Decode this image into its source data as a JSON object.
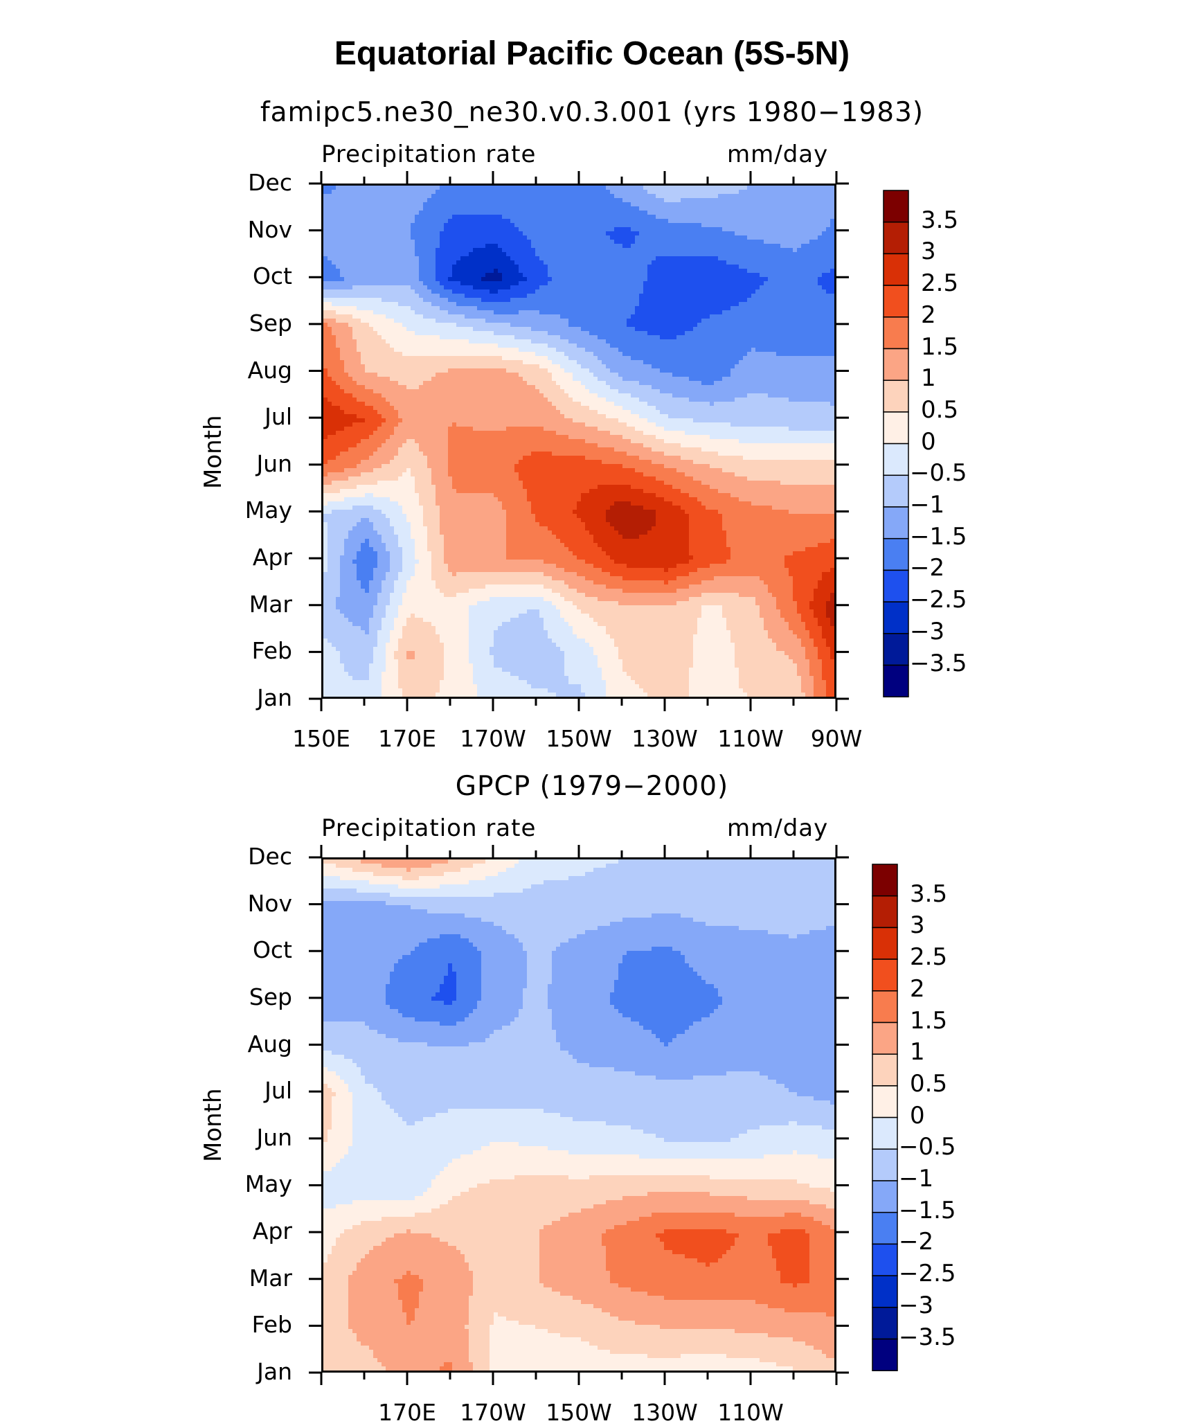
{
  "title": "Equatorial Pacific Ocean (5S-5N)",
  "colors": {
    "scale": [
      "#00007f",
      "#001a99",
      "#0030c8",
      "#1e50ee",
      "#4a7ff2",
      "#85a8f8",
      "#b4cbfb",
      "#dbe9fd",
      "#fff0e6",
      "#fdd3bc",
      "#fba585",
      "#f87c4e",
      "#f14f1e",
      "#d93006",
      "#b41e04",
      "#7c0000"
    ]
  },
  "chart_data": [
    {
      "type": "heatmap",
      "title": "famipc5.ne30_ne30.v0.3.001 (yrs 1980−1983)",
      "subtitle_left": "Precipitation rate",
      "subtitle_right": "mm/day",
      "ylabel": "Month",
      "y_ticks": [
        "Jan",
        "Feb",
        "Mar",
        "Apr",
        "May",
        "Jun",
        "Jul",
        "Aug",
        "Sep",
        "Oct",
        "Nov",
        "Dec"
      ],
      "x_ticks": [
        "150E",
        "170E",
        "170W",
        "150W",
        "130W",
        "110W",
        "90W"
      ],
      "x_range": [
        150,
        270
      ],
      "colorbar_labels": [
        "3.5",
        "3",
        "2.5",
        "2",
        "1.5",
        "1",
        "0.5",
        "0",
        "−0.5",
        "−1",
        "−1.5",
        "−2",
        "−2.5",
        "−3",
        "−3.5"
      ],
      "levels": [
        -3.5,
        -3,
        -2.5,
        -2,
        -1.5,
        -1,
        -0.5,
        0,
        0.5,
        1,
        1.5,
        2,
        2.5,
        3,
        3.5
      ],
      "x": [
        150,
        160,
        170,
        180,
        190,
        200,
        210,
        220,
        230,
        240,
        250,
        260,
        270
      ],
      "values": [
        [
          -0.5,
          -0.3,
          0.6,
          0.4,
          -0.2,
          -0.4,
          -0.6,
          0.3,
          0.6,
          0.4,
          0.5,
          0.6,
          2.4
        ],
        [
          -0.3,
          -0.8,
          1.1,
          0.4,
          -0.6,
          -0.8,
          -0.3,
          0.6,
          0.9,
          0.2,
          0.7,
          1.1,
          2.8
        ],
        [
          -0.9,
          -1.3,
          0.4,
          0.3,
          -0.4,
          -0.5,
          0.6,
          0.9,
          1.0,
          0.4,
          0.8,
          2.0,
          3.5
        ],
        [
          -0.3,
          -2.0,
          -0.3,
          1.3,
          1.5,
          1.5,
          2.0,
          2.7,
          2.9,
          2.2,
          1.8,
          2.1,
          2.4
        ],
        [
          -0.5,
          -0.9,
          0.1,
          1.4,
          1.3,
          2.1,
          2.6,
          3.4,
          2.9,
          2.1,
          1.7,
          1.5,
          1.5
        ],
        [
          2.0,
          1.3,
          0.5,
          1.6,
          1.8,
          2.3,
          2.3,
          2.0,
          1.5,
          1.0,
          0.7,
          0.7,
          0.7
        ],
        [
          2.9,
          2.5,
          1.3,
          1.5,
          1.4,
          1.4,
          0.9,
          0.4,
          -0.4,
          -0.6,
          -0.7,
          -0.8,
          -0.8
        ],
        [
          2.1,
          1.0,
          0.8,
          1.1,
          1.2,
          0.8,
          -0.3,
          -1.2,
          -1.5,
          -1.8,
          -1.2,
          -1.3,
          -1.4
        ],
        [
          1.7,
          0.6,
          -0.1,
          -0.4,
          -0.8,
          -1.2,
          -1.6,
          -2.0,
          -2.2,
          -1.9,
          -1.8,
          -1.9,
          -1.7
        ],
        [
          -1.8,
          -1.2,
          -1.1,
          -2.6,
          -3.2,
          -2.2,
          -1.5,
          -1.8,
          -2.2,
          -2.4,
          -2.1,
          -1.8,
          -2.2
        ],
        [
          -1.2,
          -1.0,
          -1.5,
          -2.2,
          -2.3,
          -1.8,
          -1.9,
          -2.1,
          -1.8,
          -1.6,
          -1.4,
          -1.3,
          -1.6
        ],
        [
          -1.6,
          -1.3,
          -1.2,
          -1.6,
          -1.5,
          -1.7,
          -1.8,
          -1.2,
          -0.6,
          -0.8,
          -1.0,
          -1.2,
          -1.4
        ]
      ]
    },
    {
      "type": "heatmap",
      "title": "GPCP (1979−2000)",
      "subtitle_left": "Precipitation rate",
      "subtitle_right": "mm/day",
      "ylabel": "Month",
      "y_ticks": [
        "Jan",
        "Feb",
        "Mar",
        "Apr",
        "May",
        "Jun",
        "Jul",
        "Aug",
        "Sep",
        "Oct",
        "Nov",
        "Dec"
      ],
      "x_ticks": [
        "170E",
        "170W",
        "150W",
        "130W",
        "110W"
      ],
      "x_range": [
        150,
        270
      ],
      "colorbar_labels": [
        "3.5",
        "3",
        "2.5",
        "2",
        "1.5",
        "1",
        "0.5",
        "0",
        "−0.5",
        "−1",
        "−1.5",
        "−2",
        "−2.5",
        "−3",
        "−3.5"
      ],
      "levels": [
        -3.5,
        -3,
        -2.5,
        -2,
        -1.5,
        -1,
        -0.5,
        0,
        0.5,
        1,
        1.5,
        2,
        2.5,
        3,
        3.5
      ],
      "x": [
        150,
        160,
        170,
        180,
        190,
        200,
        210,
        220,
        230,
        240,
        250,
        260,
        270
      ],
      "values": [
        [
          0.5,
          0.7,
          1.3,
          1.6,
          0.3,
          0.2,
          0.2,
          0.2,
          0.2,
          0.1,
          0.2,
          0.4,
          0.9
        ],
        [
          0.7,
          1.2,
          1.5,
          1.3,
          0.4,
          0.5,
          0.6,
          0.9,
          1.0,
          1.0,
          1.1,
          1.2,
          1.4
        ],
        [
          0.6,
          1.3,
          1.6,
          1.3,
          0.7,
          1.0,
          1.3,
          1.6,
          1.8,
          1.9,
          1.8,
          2.1,
          1.8
        ],
        [
          0.3,
          0.8,
          1.1,
          0.9,
          0.8,
          1.0,
          1.3,
          1.7,
          2.1,
          2.2,
          1.9,
          2.2,
          1.6
        ],
        [
          -0.3,
          -0.3,
          -0.4,
          0.4,
          0.6,
          0.7,
          0.7,
          0.8,
          0.9,
          0.8,
          0.7,
          0.6,
          0.4
        ],
        [
          0.6,
          -0.3,
          -0.4,
          -0.3,
          0.0,
          -0.1,
          -0.3,
          -0.4,
          -0.5,
          -0.6,
          -0.4,
          -0.2,
          -0.3
        ],
        [
          0.8,
          -0.4,
          -0.7,
          -0.6,
          -0.7,
          -0.7,
          -0.8,
          -0.7,
          -0.8,
          -0.8,
          -0.8,
          -1.0,
          -1.2
        ],
        [
          -0.6,
          -0.8,
          -0.9,
          -1.0,
          -0.9,
          -0.9,
          -1.1,
          -1.3,
          -1.5,
          -1.3,
          -1.2,
          -1.3,
          -1.3
        ],
        [
          -1.4,
          -1.2,
          -1.9,
          -2.1,
          -1.2,
          -0.9,
          -1.3,
          -1.6,
          -1.7,
          -1.6,
          -1.3,
          -1.2,
          -1.4
        ],
        [
          -1.3,
          -1.3,
          -1.5,
          -2.0,
          -1.3,
          -0.9,
          -1.2,
          -1.5,
          -1.6,
          -1.3,
          -1.2,
          -1.1,
          -1.4
        ],
        [
          -1.2,
          -1.3,
          -1.0,
          -0.8,
          -0.8,
          -0.7,
          -0.7,
          -0.8,
          -0.9,
          -0.8,
          -0.8,
          -0.8,
          -0.7
        ],
        [
          0.6,
          1.2,
          1.6,
          1.0,
          0.4,
          -0.3,
          -0.4,
          -0.5,
          -0.5,
          -0.6,
          -0.7,
          -0.7,
          -0.8
        ]
      ]
    }
  ]
}
